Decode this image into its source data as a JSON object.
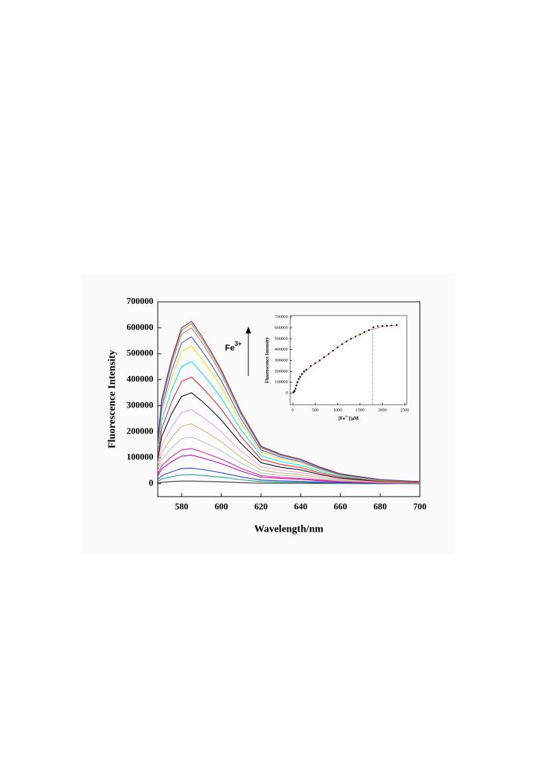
{
  "chart_data": [
    {
      "type": "line",
      "xlabel": "Wavelength/nm",
      "ylabel": "Fluorescence Intensity",
      "annotation": {
        "text": "Fe",
        "superscript": "3+"
      },
      "xlim": [
        568,
        700
      ],
      "xticks": [
        580,
        600,
        620,
        640,
        660,
        680,
        700
      ],
      "ylim": [
        -50000,
        700000
      ],
      "yticks": [
        0,
        100000,
        200000,
        300000,
        400000,
        500000,
        600000,
        700000
      ],
      "x": [
        568,
        570,
        575,
        580,
        585,
        590,
        595,
        600,
        610,
        620,
        630,
        640,
        650,
        660,
        680,
        700
      ],
      "series": [
        {
          "color": "#2e2e2e",
          "values": [
            3000,
            5000,
            8000,
            10000,
            10000,
            9000,
            8000,
            7000,
            4000,
            2000,
            2000,
            2000,
            1000,
            1000,
            0,
            0
          ]
        },
        {
          "color": "#1a9a8a",
          "values": [
            9000,
            18000,
            27000,
            34000,
            35000,
            32000,
            28000,
            25000,
            15000,
            8000,
            6000,
            5000,
            4000,
            2000,
            1000,
            0
          ]
        },
        {
          "color": "#2040d0",
          "values": [
            16000,
            31000,
            46000,
            58000,
            60000,
            55000,
            49000,
            42000,
            26000,
            14000,
            11000,
            9000,
            6000,
            4000,
            2000,
            1000
          ]
        },
        {
          "color": "#c000c0",
          "values": [
            30000,
            57000,
            85000,
            106000,
            110000,
            100000,
            89000,
            77000,
            48000,
            25000,
            20000,
            17000,
            11000,
            7000,
            3000,
            1000
          ]
        },
        {
          "color": "#e0208a",
          "values": [
            36000,
            70000,
            104000,
            130000,
            135000,
            123000,
            109000,
            95000,
            59000,
            31000,
            24000,
            20000,
            14000,
            8000,
            3000,
            2000
          ]
        },
        {
          "color": "#c0c0c0",
          "values": [
            49000,
            94000,
            139000,
            173000,
            180000,
            164000,
            146000,
            126000,
            79000,
            41000,
            32000,
            27000,
            18000,
            11000,
            5000,
            2000
          ]
        },
        {
          "color": "#c8b880",
          "values": [
            62000,
            120000,
            177000,
            221000,
            230000,
            209000,
            186000,
            161000,
            101000,
            53000,
            41000,
            35000,
            23000,
            14000,
            6000,
            3000
          ]
        },
        {
          "color": "#f0a0d0",
          "values": [
            77000,
            148000,
            219000,
            274000,
            285000,
            259000,
            231000,
            200000,
            125000,
            66000,
            51000,
            43000,
            29000,
            17000,
            7000,
            3000
          ]
        },
        {
          "color": "#000000",
          "values": [
            95000,
            182000,
            270000,
            336000,
            350000,
            319000,
            284000,
            245000,
            154000,
            81000,
            63000,
            53000,
            35000,
            21000,
            9000,
            4000
          ]
        },
        {
          "color": "#ff2020",
          "values": [
            111000,
            213000,
            316000,
            394000,
            410000,
            373000,
            332000,
            287000,
            180000,
            94000,
            74000,
            62000,
            41000,
            25000,
            10000,
            5000
          ]
        },
        {
          "color": "#00e0ff",
          "values": [
            127000,
            244000,
            362000,
            451000,
            470000,
            428000,
            381000,
            329000,
            207000,
            108000,
            85000,
            71000,
            47000,
            28000,
            12000,
            6000
          ]
        },
        {
          "color": "#f0e000",
          "values": [
            143000,
            276000,
            408000,
            509000,
            530000,
            482000,
            429000,
            371000,
            233000,
            122000,
            95000,
            80000,
            53000,
            32000,
            13000,
            6000
          ]
        },
        {
          "color": "#3050ff",
          "values": [
            153000,
            294000,
            435000,
            542000,
            565000,
            514000,
            458000,
            396000,
            249000,
            130000,
            102000,
            85000,
            57000,
            34000,
            14000,
            7000
          ]
        },
        {
          "color": "#909090",
          "values": [
            162000,
            312000,
            462000,
            576000,
            600000,
            546000,
            486000,
            420000,
            264000,
            138000,
            108000,
            90000,
            60000,
            36000,
            15000,
            7000
          ]
        },
        {
          "color": "#e08000",
          "values": [
            166000,
            320000,
            474000,
            590000,
            615000,
            560000,
            498000,
            431000,
            271000,
            141000,
            111000,
            92000,
            62000,
            37000,
            15000,
            7000
          ]
        },
        {
          "color": "#5020a0",
          "values": [
            169000,
            325000,
            481000,
            600000,
            625000,
            569000,
            506000,
            438000,
            275000,
            144000,
            113000,
            94000,
            63000,
            38000,
            16000,
            8000
          ]
        }
      ]
    },
    {
      "type": "scatter",
      "xlabel": {
        "before": "[Fe",
        "superscript": "3+",
        "after": "]/μM"
      },
      "ylabel": "Fluorescence Intensity",
      "xlim": [
        -60,
        2546
      ],
      "xticks": [
        0,
        500,
        1000,
        1500,
        2000,
        2500
      ],
      "ylim": [
        -107000,
        713000
      ],
      "yticks": [
        0,
        100000,
        200000,
        300000,
        400000,
        500000,
        600000,
        700000
      ],
      "reference_lines_x": [
        1780
      ],
      "series": [
        {
          "type": "line",
          "color": "#e06060",
          "x": [
            0,
            100,
            200,
            400,
            600,
            800,
            1000,
            1200,
            1400,
            1600,
            1800,
            2000,
            2200,
            2320
          ],
          "values": [
            0,
            90000,
            165000,
            245000,
            300000,
            360000,
            420000,
            475000,
            520000,
            560000,
            590000,
            610000,
            620000,
            625000
          ]
        },
        {
          "type": "scatter",
          "color": "#000000",
          "x": [
            10,
            20,
            40,
            60,
            80,
            100,
            130,
            160,
            200,
            250,
            300,
            400,
            500,
            600,
            700,
            800,
            900,
            1000,
            1100,
            1200,
            1300,
            1400,
            1500,
            1600,
            1700,
            1800,
            1900,
            2000,
            2100,
            2200,
            2320
          ],
          "values": [
            5000,
            10000,
            20000,
            40000,
            70000,
            100000,
            130000,
            150000,
            175000,
            200000,
            215000,
            250000,
            275000,
            300000,
            330000,
            360000,
            390000,
            420000,
            450000,
            475000,
            500000,
            520000,
            540000,
            560000,
            580000,
            605000,
            615000,
            618000,
            620000,
            622000,
            625000
          ]
        }
      ]
    }
  ]
}
